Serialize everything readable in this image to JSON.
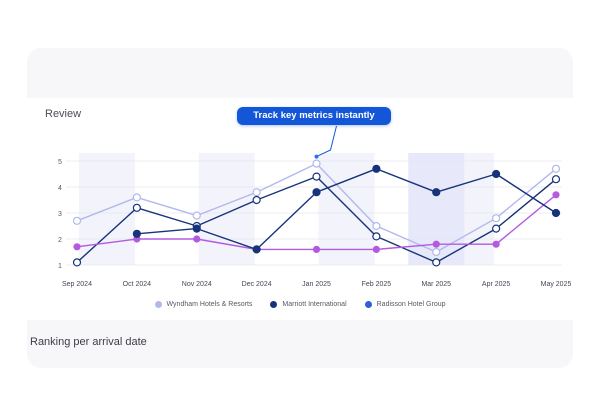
{
  "section_title": "Review",
  "callout": "Track key metrics instantly",
  "footer_title": "Ranking per arrival date",
  "colors": {
    "wyndham": "#b2b8ec",
    "marriott": "#17337a",
    "radisson": "#b35ae0",
    "callout_bg": "#1357d8",
    "highlight": "#e7e9fb",
    "stripe": "#f2f3fb"
  },
  "chart_data": {
    "type": "line",
    "categories": [
      "Sep 2024",
      "Oct 2024",
      "Nov 2024",
      "Dec 2024",
      "Jan 2025",
      "Feb 2025",
      "Mar 2025",
      "Apr 2025",
      "May 2025"
    ],
    "ylim": [
      1,
      5
    ],
    "yticks": [
      1,
      2,
      3,
      4,
      5
    ],
    "grid": true,
    "legend": "bottom",
    "highlighted_category": "Mar 2025",
    "series": [
      {
        "key": "wyndham",
        "values": [
          2.7,
          3.6,
          2.9,
          3.8,
          4.9,
          2.5,
          1.5,
          2.8,
          4.7
        ]
      },
      {
        "key": "marriott",
        "values": [
          1.1,
          3.2,
          2.5,
          3.5,
          4.4,
          2.1,
          1.1,
          2.4,
          4.3
        ]
      },
      {
        "key": "radisson",
        "values": [
          1.7,
          2.0,
          2.0,
          1.6,
          1.6,
          1.6,
          1.8,
          1.8,
          3.7
        ]
      },
      {
        "key": "marriott_intl",
        "values": [
          null,
          2.2,
          2.4,
          1.6,
          3.8,
          4.7,
          3.8,
          4.5,
          3.0
        ]
      }
    ],
    "legend_entries": [
      {
        "name": "Wyndham Hotels & Resorts",
        "color": "#b2b8ec"
      },
      {
        "name": "Marriott International",
        "color": "#17337a"
      },
      {
        "name": "Radisson Hotel Group",
        "color": "#2f5fd9"
      }
    ]
  }
}
